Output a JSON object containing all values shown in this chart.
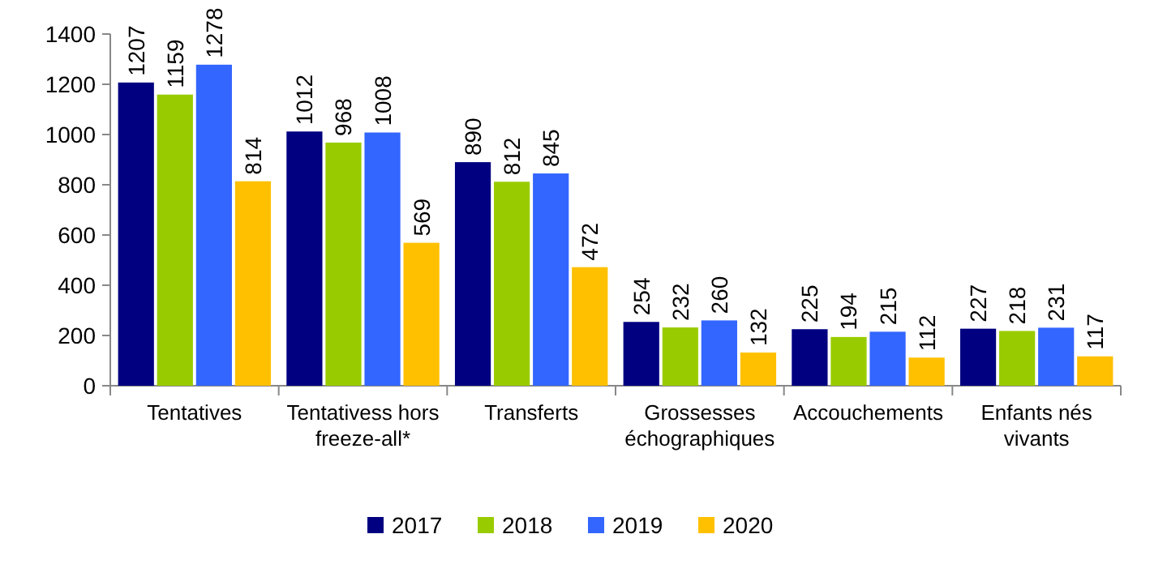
{
  "chart_data": {
    "type": "bar",
    "categories": [
      "Tentatives",
      "Tentativess hors freeze-all*",
      "Transferts",
      "Grossesses échographiques",
      "Accouchements",
      "Enfants nés vivants"
    ],
    "series": [
      {
        "name": "2017",
        "color": "#000080",
        "values": [
          1207,
          1012,
          890,
          254,
          225,
          227
        ]
      },
      {
        "name": "2018",
        "color": "#99cc00",
        "values": [
          1159,
          968,
          812,
          232,
          194,
          218
        ]
      },
      {
        "name": "2019",
        "color": "#3366ff",
        "values": [
          1278,
          1008,
          845,
          260,
          215,
          231
        ]
      },
      {
        "name": "2020",
        "color": "#ffc000",
        "values": [
          814,
          569,
          472,
          132,
          112,
          117
        ]
      }
    ],
    "ylim": [
      0,
      1400
    ],
    "yticks": [
      0,
      200,
      400,
      600,
      800,
      1000,
      1200,
      1400
    ],
    "data_labels": true,
    "grid": false,
    "legend": "bottom"
  }
}
